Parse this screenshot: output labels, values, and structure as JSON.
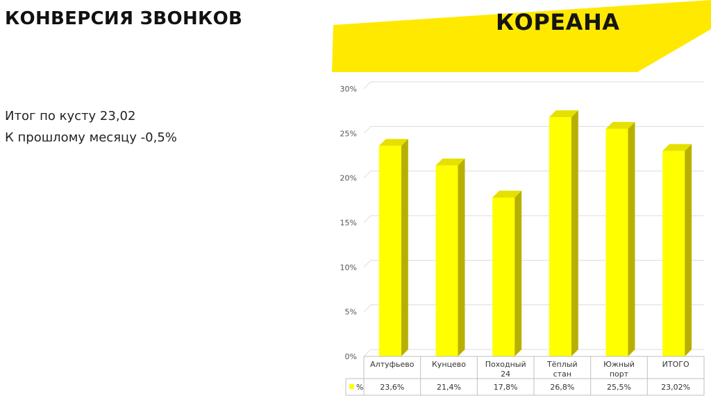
{
  "slide": {
    "title": "КОНВЕРСИЯ ЗВОНКОВ",
    "brand": "КОРЕАНА",
    "lines": [
      "Итог по кусту 23,02",
      "К прошлому месяцу -0,5%"
    ]
  },
  "colors": {
    "accent": "#FFE900",
    "bar_front": "#FFFF00",
    "bar_side": "#B8B000",
    "bar_top": "#E6E000"
  },
  "chart_data": {
    "type": "bar",
    "categories": [
      [
        "Алтуфьево"
      ],
      [
        "Кунцево"
      ],
      [
        "Походный",
        "24"
      ],
      [
        "Тёплый",
        "стан"
      ],
      [
        "Южный",
        "порт"
      ],
      [
        "ИТОГО"
      ]
    ],
    "series": [
      {
        "name": "%",
        "values": [
          23.6,
          21.4,
          17.8,
          26.8,
          25.5,
          23.02
        ]
      }
    ],
    "value_labels": [
      "23,6%",
      "21,4%",
      "17,8%",
      "26,8%",
      "25,5%",
      "23,02%"
    ],
    "ylim": [
      0,
      30
    ],
    "yticks": [
      "0%",
      "5%",
      "10%",
      "15%",
      "20%",
      "25%",
      "30%"
    ],
    "grid": true,
    "data_table": true
  }
}
